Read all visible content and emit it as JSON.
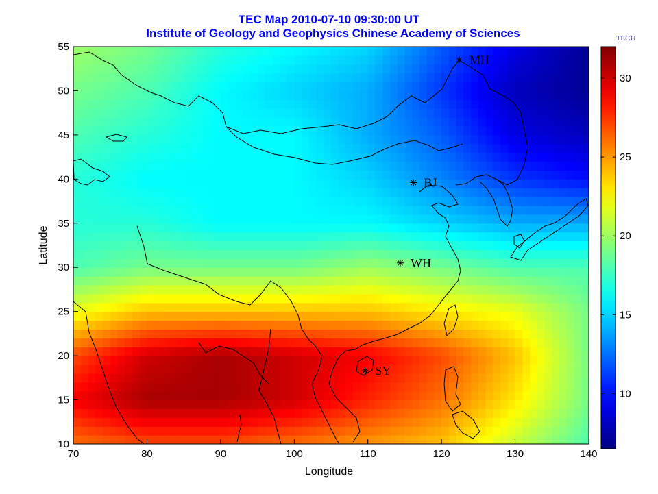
{
  "figure": {
    "title_line1": "TEC Map 2010-07-10 09:30:00 UT",
    "title_line2": "Institute of Geology and Geophysics Chinese Academy of Sciences",
    "title_color": "#0000ff"
  },
  "chart_data": {
    "type": "heatmap",
    "xlabel": "Longitude",
    "ylabel": "Latitude",
    "xlim": [
      70,
      140
    ],
    "ylim": [
      10,
      55
    ],
    "xticks": [
      70,
      80,
      90,
      100,
      110,
      120,
      130,
      140
    ],
    "yticks": [
      10,
      15,
      20,
      25,
      30,
      35,
      40,
      45,
      50,
      55
    ],
    "colorbar": {
      "unit": "TECU",
      "range": [
        6.5,
        32
      ],
      "ticks": [
        10,
        15,
        20,
        25,
        30
      ],
      "colormap": "jet"
    },
    "stations": [
      {
        "name": "MH",
        "lon": 122.4,
        "lat": 53.5
      },
      {
        "name": "BJ",
        "lon": 116.2,
        "lat": 39.6
      },
      {
        "name": "WH",
        "lon": 114.4,
        "lat": 30.5
      },
      {
        "name": "SY",
        "lon": 109.6,
        "lat": 18.3
      }
    ],
    "tec_grid": {
      "lons": [
        70,
        80,
        90,
        100,
        110,
        120,
        130,
        140
      ],
      "lats": [
        55,
        50,
        45,
        40,
        35,
        30,
        25,
        20,
        15,
        10
      ],
      "values": [
        [
          20,
          19,
          17,
          16,
          15,
          12,
          9,
          7
        ],
        [
          19,
          18,
          16,
          15,
          14,
          11,
          8,
          7
        ],
        [
          18,
          17,
          16,
          16,
          14,
          12,
          9,
          8
        ],
        [
          17,
          16,
          16,
          16,
          15,
          13,
          11,
          10
        ],
        [
          17,
          17,
          16,
          16,
          16,
          15,
          14,
          14
        ],
        [
          18,
          19,
          19,
          19,
          20,
          19,
          18,
          18
        ],
        [
          22,
          24,
          24,
          24,
          24,
          23,
          22,
          19
        ],
        [
          27,
          30,
          31,
          30,
          29,
          27,
          24,
          19
        ],
        [
          29,
          31,
          31,
          30,
          28,
          26,
          23,
          19
        ],
        [
          26,
          27,
          27,
          26,
          25,
          24,
          21,
          18
        ]
      ]
    }
  }
}
